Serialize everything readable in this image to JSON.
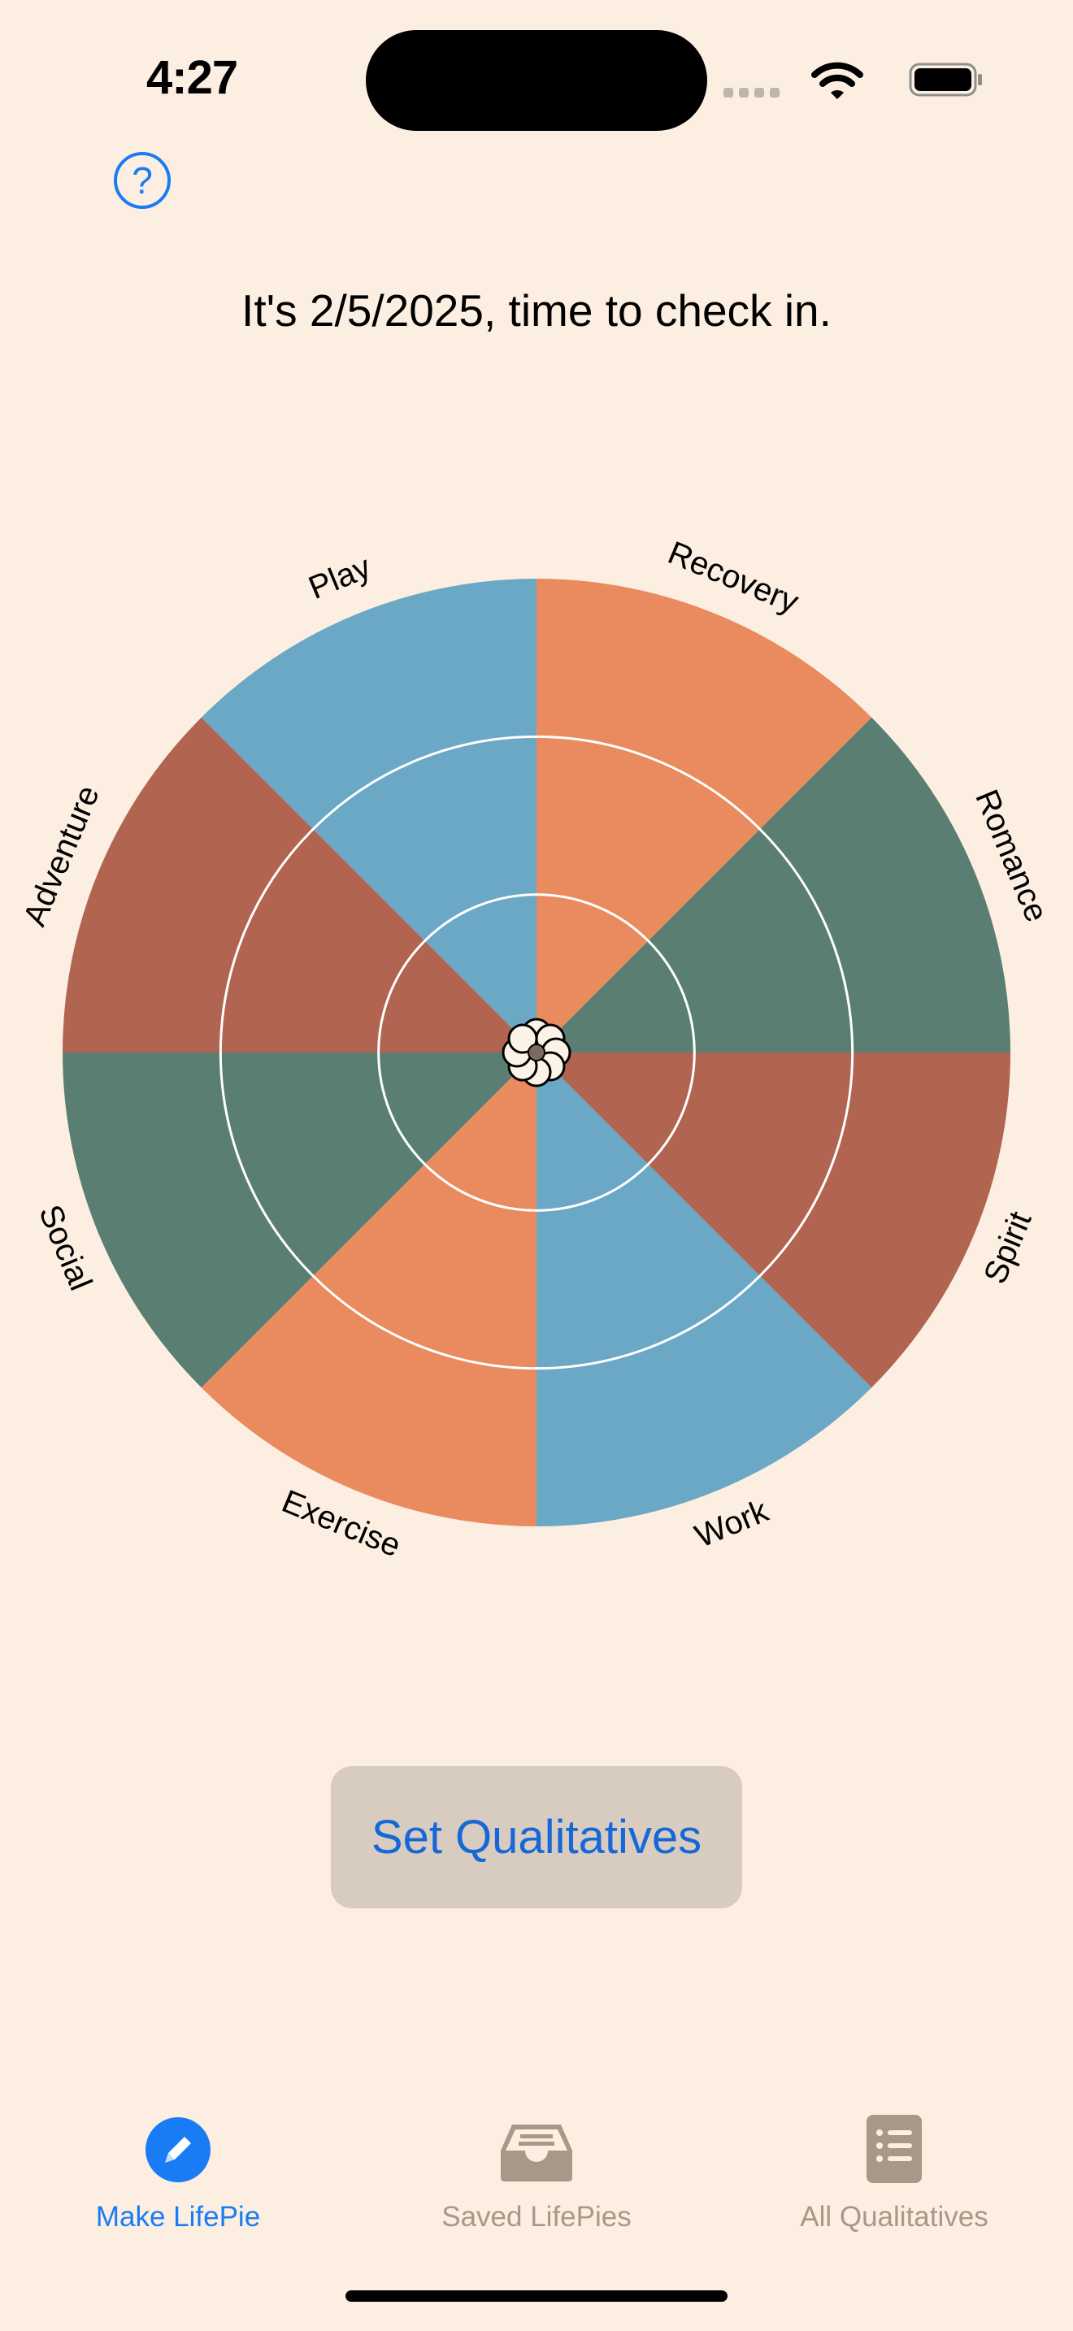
{
  "status_bar": {
    "time": "4:27"
  },
  "header": {
    "help_icon": "question-mark-icon",
    "help_symbol": "?"
  },
  "checkin": {
    "message": "It's 2/5/2025, time to check in."
  },
  "chart_data": {
    "type": "pie",
    "rings": 3,
    "categories": [
      "Recovery",
      "Romance",
      "Spirit",
      "Work",
      "Exercise",
      "Social",
      "Adventure",
      "Play"
    ],
    "colors": [
      "#E98B5E",
      "#5A7F72",
      "#B16450",
      "#6BA8C6",
      "#E98B5E",
      "#5A7F72",
      "#B16450",
      "#6BA8C6"
    ],
    "values": [
      1,
      1,
      1,
      1,
      1,
      1,
      1,
      1
    ]
  },
  "actions": {
    "set_qualitatives": "Set Qualitatives"
  },
  "tabs": [
    {
      "label": "Make LifePie",
      "icon": "pencil-icon",
      "active": true
    },
    {
      "label": "Saved LifePies",
      "icon": "tray-icon",
      "active": false
    },
    {
      "label": "All Qualitatives",
      "icon": "list-icon",
      "active": false
    }
  ],
  "theme": {
    "background": "#FCEFE2",
    "accent": "#1A7CF5",
    "inactive": "#A89887"
  }
}
